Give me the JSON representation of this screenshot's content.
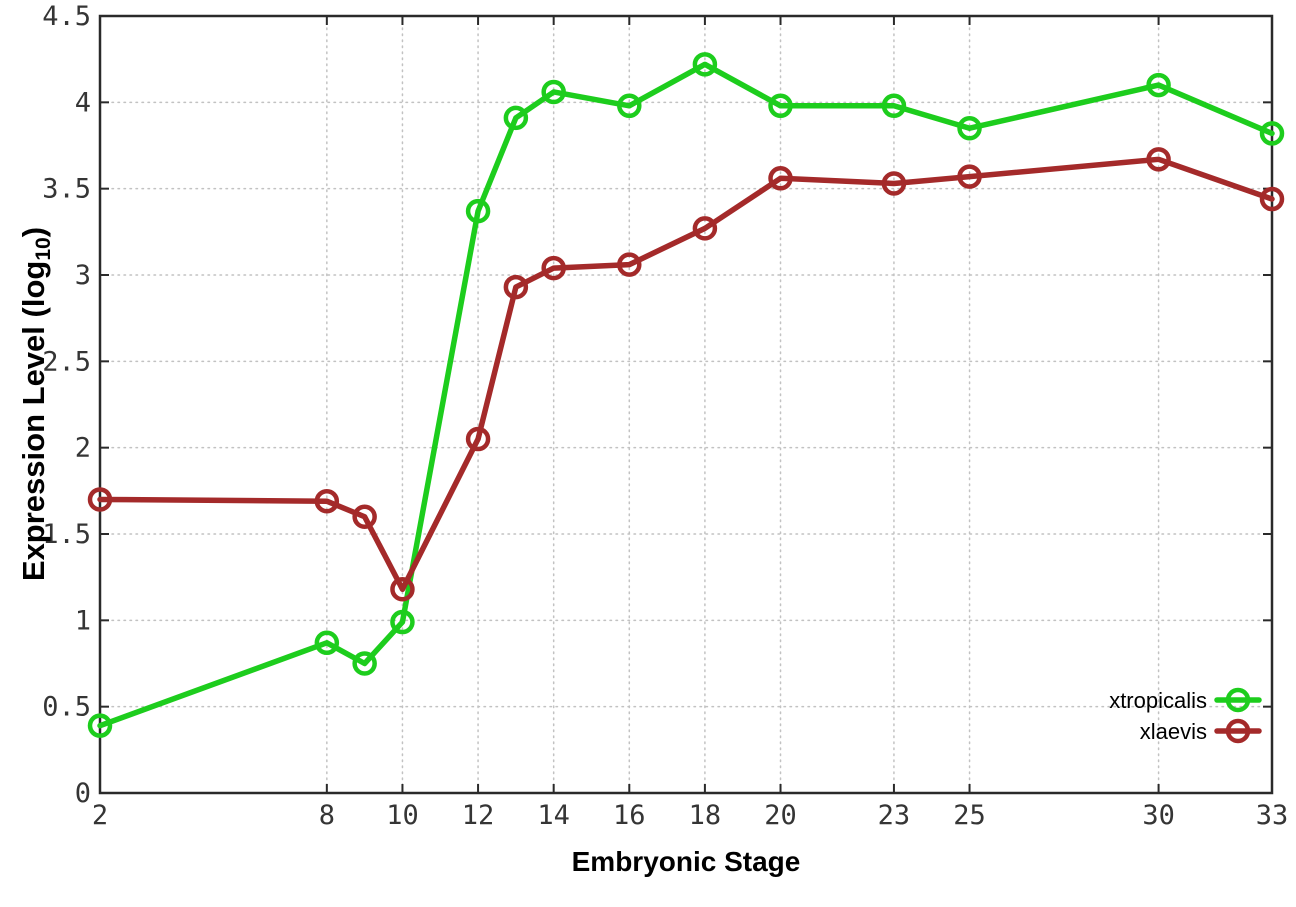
{
  "chart_data": {
    "type": "line",
    "title": "",
    "xlabel": "Embryonic Stage",
    "ylabel": "Expression Level (log10)",
    "ylabel_parts": {
      "pre": "Expression Level (log",
      "sub": "10",
      "post": ")"
    },
    "x": [
      2,
      8,
      9,
      10,
      12,
      13,
      14,
      16,
      18,
      20,
      23,
      25,
      30,
      33
    ],
    "series": [
      {
        "name": "xtropicalis",
        "color": "#1dcd1d",
        "values": [
          0.39,
          0.87,
          0.75,
          0.99,
          3.37,
          3.91,
          4.06,
          3.98,
          4.22,
          3.98,
          3.98,
          3.85,
          4.1,
          3.82
        ]
      },
      {
        "name": "xlaevis",
        "color": "#a42a2a",
        "values": [
          1.7,
          1.69,
          1.6,
          1.18,
          2.05,
          2.93,
          3.04,
          3.06,
          3.27,
          3.56,
          3.53,
          3.57,
          3.67,
          3.44
        ]
      }
    ],
    "x_ticks": [
      2,
      8,
      10,
      12,
      14,
      16,
      18,
      20,
      23,
      25,
      30,
      33
    ],
    "x_tick_labels": [
      "2",
      "8",
      "10",
      "12",
      "14",
      "16",
      "18",
      "20",
      "23",
      "25",
      "30",
      "33"
    ],
    "y_ticks": [
      0,
      0.5,
      1,
      1.5,
      2,
      2.5,
      3,
      3.5,
      4,
      4.5
    ],
    "y_tick_labels": [
      "0",
      "0.5",
      "1",
      "1.5",
      "2",
      "2.5",
      "3",
      "3.5",
      "4",
      "4.5"
    ],
    "xlim": [
      2,
      33
    ],
    "ylim": [
      0,
      4.5
    ],
    "grid": true,
    "legend_position": "bottom-right",
    "marker": "open-circle",
    "colors": {
      "grid": "#c2c2c2",
      "axis": "#2a2a2a",
      "tick_label": "#353535",
      "text": "#000000",
      "background": "#ffffff"
    }
  }
}
